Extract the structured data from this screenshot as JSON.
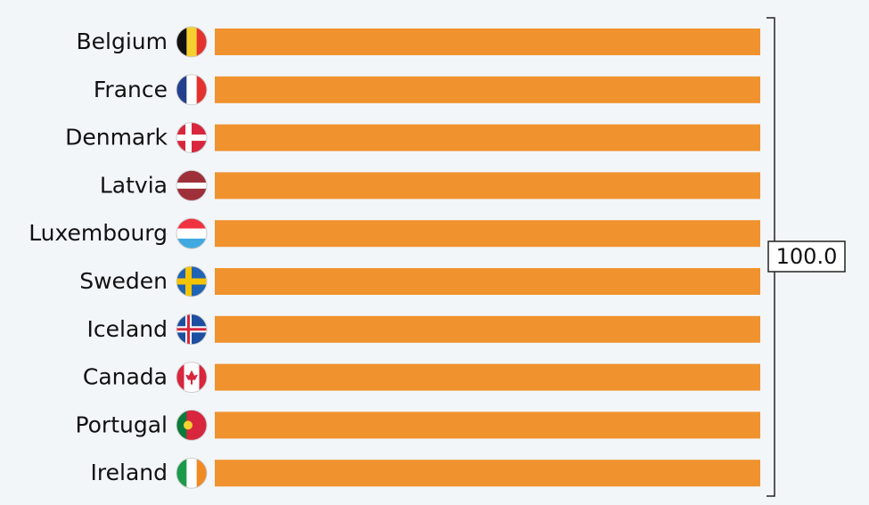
{
  "chart_data": {
    "type": "bar",
    "orientation": "horizontal",
    "categories": [
      "Belgium",
      "France",
      "Denmark",
      "Latvia",
      "Luxembourg",
      "Sweden",
      "Iceland",
      "Canada",
      "Portugal",
      "Ireland"
    ],
    "values": [
      100,
      100,
      100,
      100,
      100,
      100,
      100,
      100,
      100,
      100
    ],
    "color": "#f0922e",
    "xlim": [
      0,
      100
    ],
    "annotation": "100.0"
  }
}
